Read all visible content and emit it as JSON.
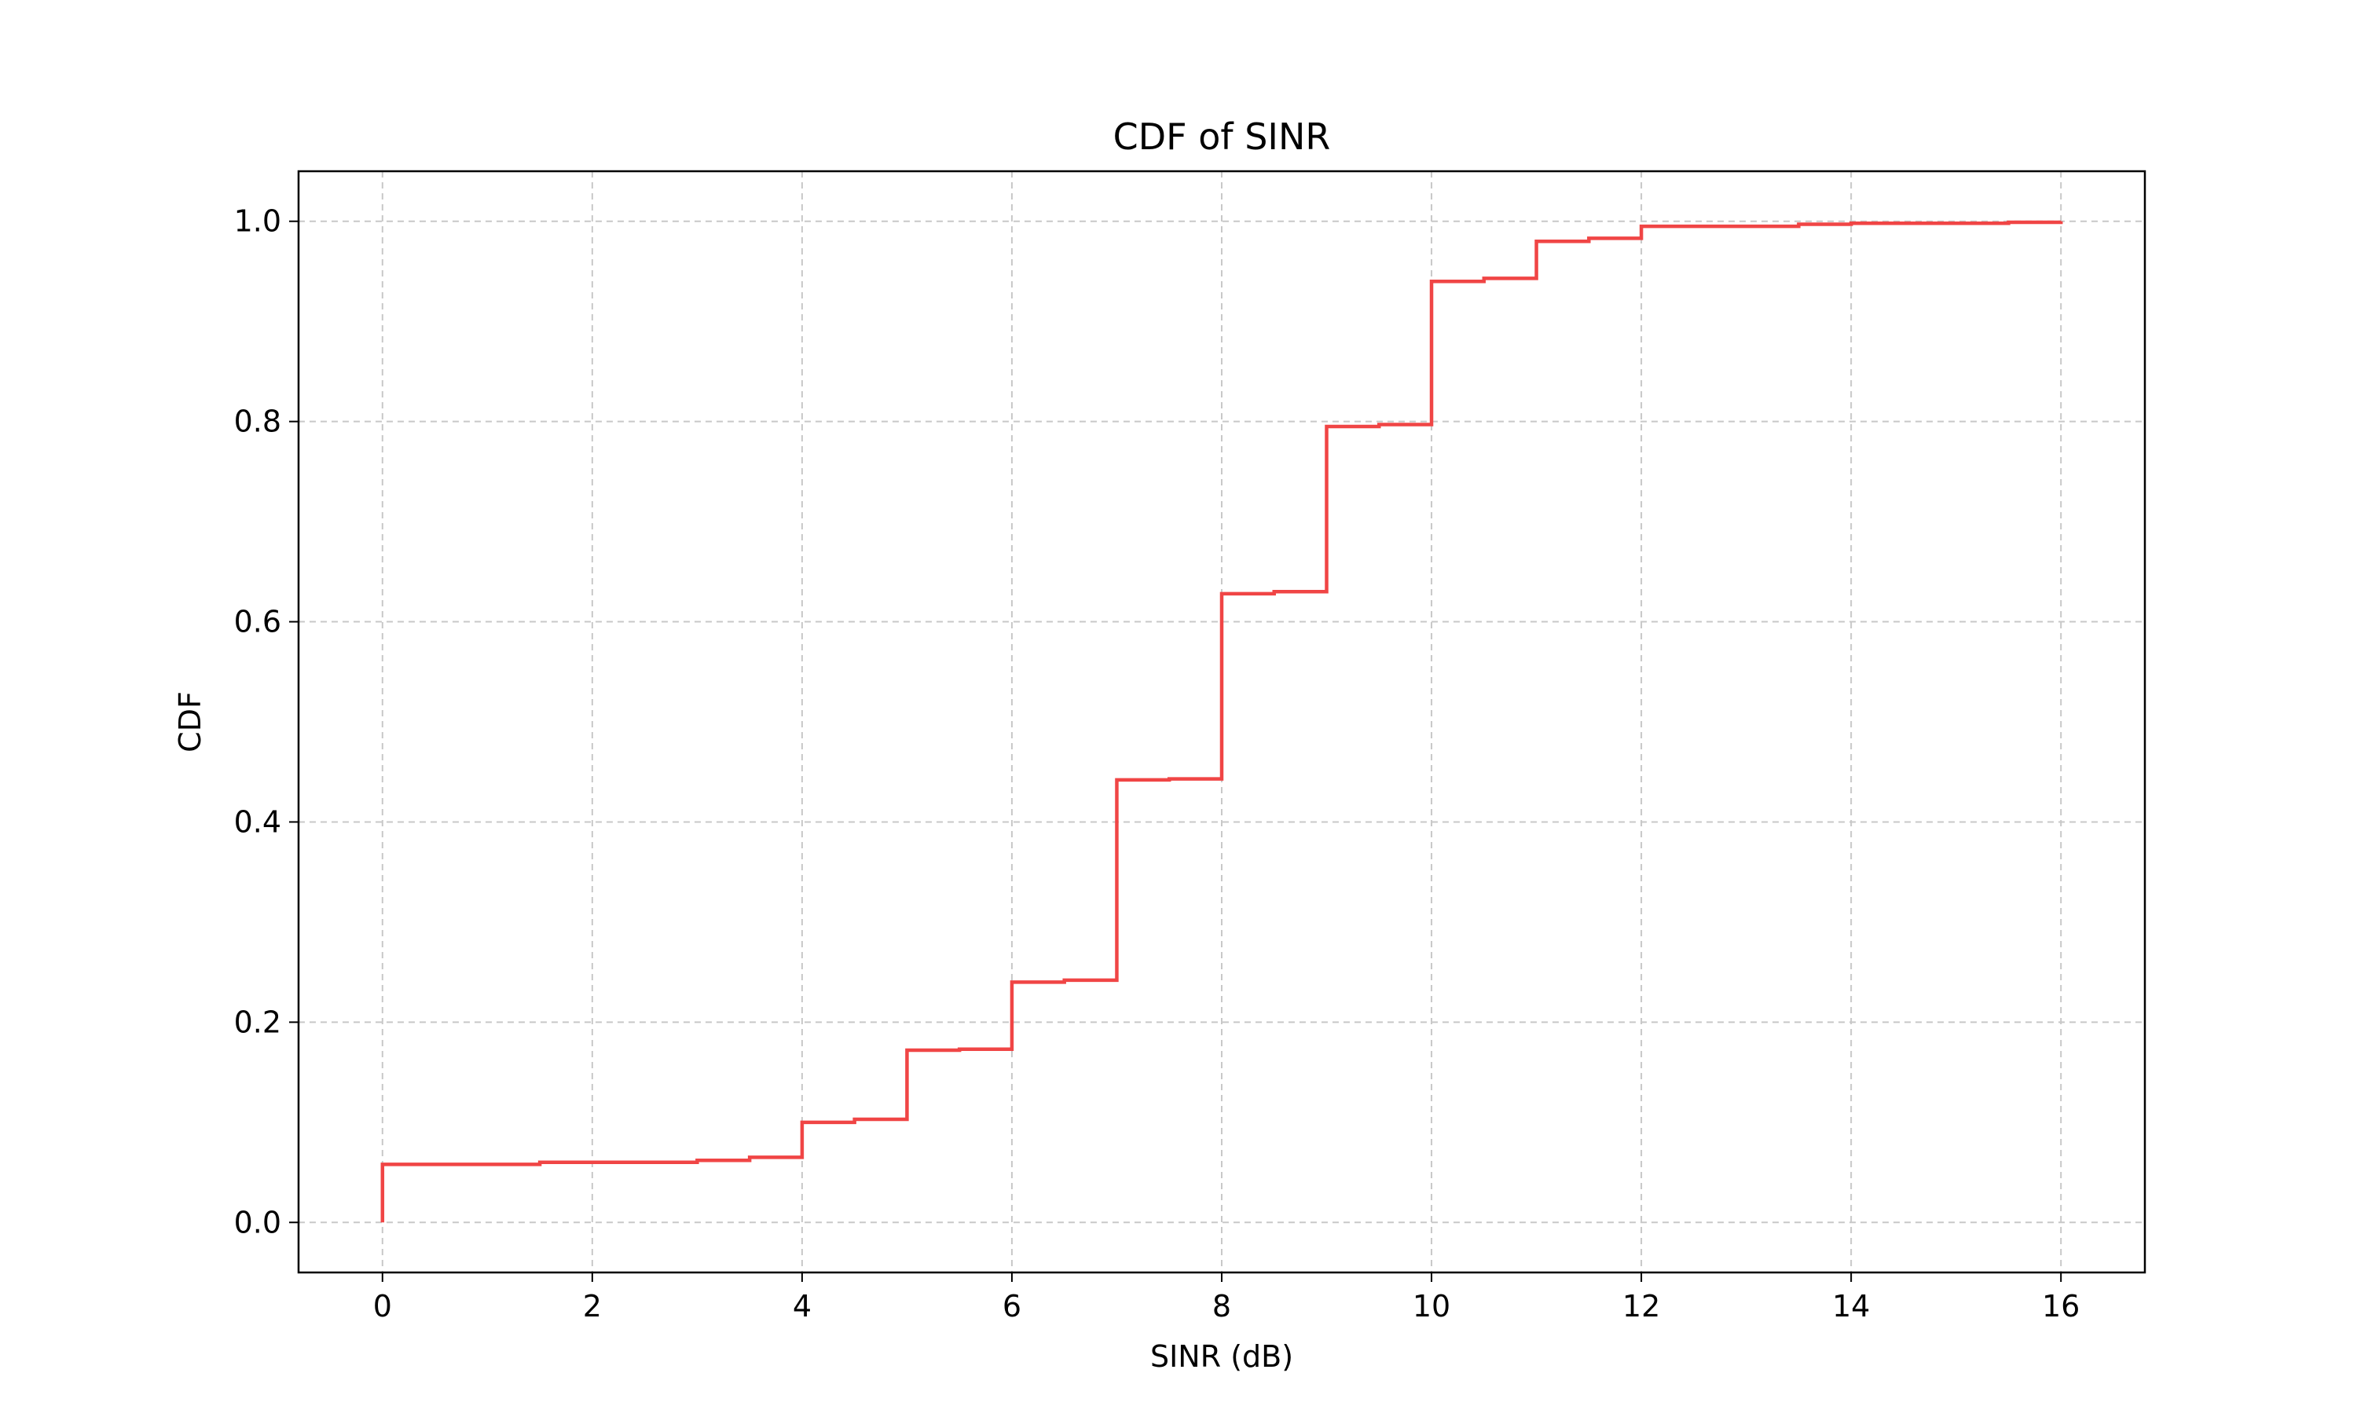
{
  "chart_data": {
    "type": "line",
    "title": "CDF of SINR",
    "xlabel": "SINR (dB)",
    "ylabel": "CDF",
    "xlim": [
      -0.8,
      16.8
    ],
    "ylim": [
      -0.05,
      1.05
    ],
    "xticks": [
      0,
      2,
      4,
      6,
      8,
      10,
      12,
      14,
      16
    ],
    "xtick_labels": [
      "0",
      "2",
      "4",
      "6",
      "8",
      "10",
      "12",
      "14",
      "16"
    ],
    "yticks": [
      0.0,
      0.2,
      0.4,
      0.6,
      0.8,
      1.0
    ],
    "ytick_labels": [
      "0.0",
      "0.2",
      "0.4",
      "0.6",
      "0.8",
      "1.0"
    ],
    "grid": true,
    "grid_style": "dashed",
    "legend": false,
    "step": "post",
    "series": [
      {
        "color": "#f04545",
        "x": [
          0,
          0,
          1.5,
          2,
          3,
          3.5,
          4,
          4.5,
          5,
          5.5,
          6,
          6.5,
          7,
          7.5,
          8,
          8.5,
          9,
          9.5,
          10,
          10.5,
          11,
          11.5,
          12,
          13.5,
          14,
          15.5,
          16
        ],
        "y": [
          0.0,
          0.058,
          0.06,
          0.06,
          0.062,
          0.065,
          0.1,
          0.103,
          0.172,
          0.173,
          0.24,
          0.242,
          0.442,
          0.443,
          0.628,
          0.63,
          0.795,
          0.797,
          0.94,
          0.943,
          0.98,
          0.983,
          0.995,
          0.997,
          0.998,
          0.999,
          1.0
        ]
      }
    ]
  }
}
